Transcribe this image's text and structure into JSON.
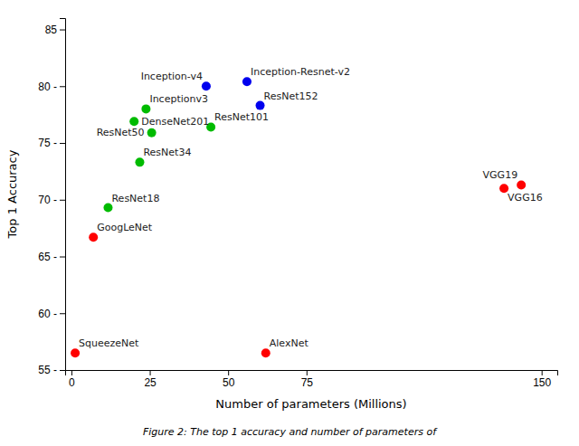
{
  "chart_data": {
    "type": "scatter",
    "xlabel": "Number of parameters (Millions)",
    "ylabel": "Top 1 Accuracy",
    "caption": "Figure 2: The top 1 accuracy and number of parameters of",
    "point_labels": [
      "SqueezeNet",
      "GoogLeNet",
      "ResNet18",
      "ResNet34",
      "DenseNet201",
      "Inceptionv3",
      "ResNet50",
      "ResNet101",
      "AlexNet",
      "Inception-v4",
      "ResNet152",
      "Inception-Resnet-v2",
      "VGG16",
      "VGG19"
    ],
    "x": [
      1.2,
      7.0,
      11.7,
      21.8,
      20.0,
      23.8,
      25.6,
      44.5,
      62.0,
      43.0,
      60.2,
      56.0,
      138.0,
      143.5
    ],
    "values": [
      56.5,
      66.7,
      69.3,
      73.3,
      76.9,
      78.0,
      75.9,
      76.4,
      56.5,
      80.0,
      78.3,
      80.4,
      71.0,
      71.3
    ],
    "colors": [
      "#ff0000",
      "#ff0000",
      "#00bb00",
      "#00bb00",
      "#00bb00",
      "#00bb00",
      "#00bb00",
      "#00bb00",
      "#ff0000",
      "#0000ee",
      "#0000ee",
      "#0000ee",
      "#ff0000",
      "#ff0000"
    ],
    "xlim": [
      -2,
      155
    ],
    "ylim": [
      55,
      86
    ],
    "xticks": [
      0,
      25,
      50,
      75,
      150
    ],
    "yticks": [
      {
        "value": 55,
        "label": "55 -"
      },
      {
        "value": 60,
        "label": "60 -"
      },
      {
        "value": 65,
        "label": "65 -"
      },
      {
        "value": 70,
        "label": "70 -"
      },
      {
        "value": 75,
        "label": "75 -"
      },
      {
        "value": 80,
        "label": "80 -"
      },
      85
    ],
    "grid": false
  }
}
